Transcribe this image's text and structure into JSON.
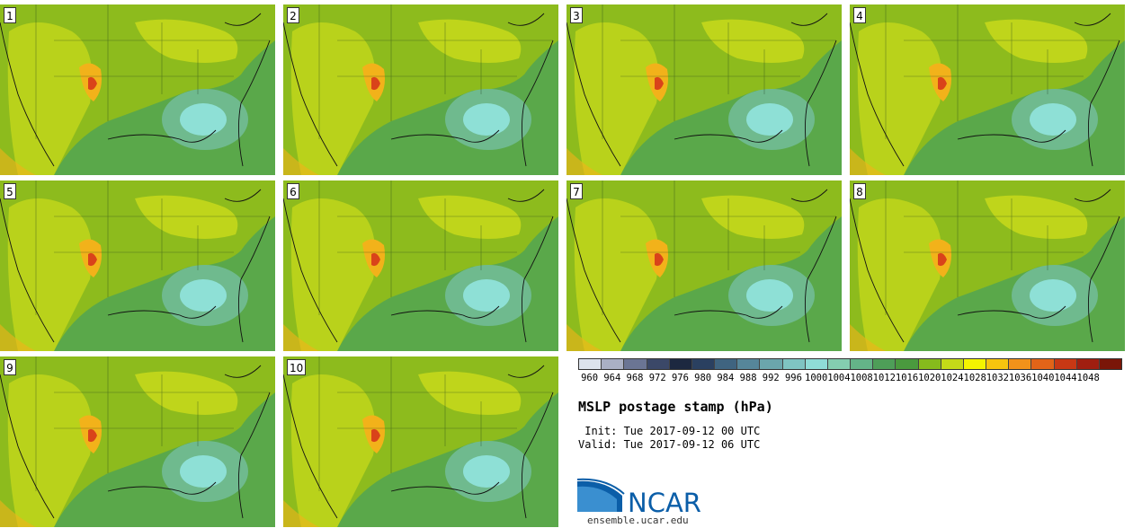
{
  "panels": [
    {
      "label": "1",
      "row": 0,
      "col": 0
    },
    {
      "label": "2",
      "row": 0,
      "col": 1
    },
    {
      "label": "3",
      "row": 0,
      "col": 2
    },
    {
      "label": "4",
      "row": 0,
      "col": 3
    },
    {
      "label": "5",
      "row": 1,
      "col": 0
    },
    {
      "label": "6",
      "row": 1,
      "col": 1
    },
    {
      "label": "7",
      "row": 1,
      "col": 2
    },
    {
      "label": "8",
      "row": 1,
      "col": 3
    },
    {
      "label": "9",
      "row": 2,
      "col": 0
    },
    {
      "label": "10",
      "row": 2,
      "col": 1
    }
  ],
  "colorbar": {
    "ticks": [
      "960",
      "964",
      "968",
      "972",
      "976",
      "980",
      "984",
      "988",
      "992",
      "996",
      "1000",
      "1004",
      "1008",
      "1012",
      "1016",
      "1020",
      "1024",
      "1028",
      "1032",
      "1036",
      "1040",
      "1044",
      "1048"
    ],
    "colors": [
      "#dde3ec",
      "#aab0c4",
      "#6b7594",
      "#3b4868",
      "#1c2840",
      "#2a4060",
      "#3f6480",
      "#56869a",
      "#6ba6ac",
      "#7fc4c2",
      "#8fdcd6",
      "#84cdb0",
      "#64b488",
      "#4e9e58",
      "#4a9a3e",
      "#86bb1c",
      "#c4da18",
      "#f4f400",
      "#f6c40e",
      "#f2921a",
      "#e26418",
      "#c83814",
      "#a01e10",
      "#7a1608"
    ]
  },
  "title": "MSLP postage stamp (hPa)",
  "init_text": " Init: Tue 2017-09-12 00 UTC",
  "valid_text": "Valid: Tue 2017-09-12 06 UTC",
  "logo_text": "NCAR",
  "site": "ensemble.ucar.edu",
  "colors": {
    "ocean": "#5aa84a",
    "land_mid": "#8dbb1d",
    "land_high": "#c4d81c",
    "low_center": "#8ee0d6",
    "low_ring": "#6fba8e",
    "hot": "#f2b21a",
    "peak": "#d9431a"
  }
}
